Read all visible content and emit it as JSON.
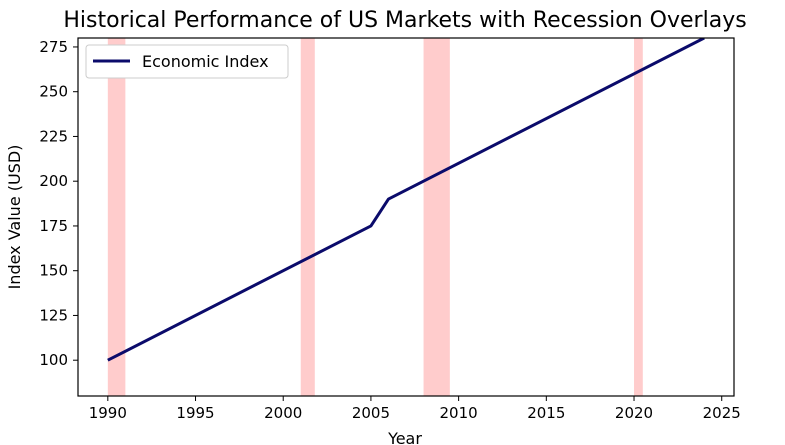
{
  "chart_data": {
    "type": "line",
    "title": "Historical Performance of US Markets with Recession Overlays",
    "xlabel": "Year",
    "ylabel": "Index Value (USD)",
    "xlim": [
      1988.3,
      2025.7
    ],
    "ylim": [
      80,
      280
    ],
    "x_ticks": [
      1990,
      1995,
      2000,
      2005,
      2010,
      2015,
      2020,
      2025
    ],
    "y_ticks": [
      100,
      125,
      150,
      175,
      200,
      225,
      250,
      275
    ],
    "grid": false,
    "legend_position": "upper-left",
    "series": [
      {
        "name": "Economic Index",
        "color": "#0b0b6b",
        "points": [
          [
            1990,
            100
          ],
          [
            2005,
            175
          ],
          [
            2006,
            190
          ],
          [
            2024,
            280
          ]
        ]
      }
    ],
    "recessions": {
      "color": "#ffcccc",
      "periods": [
        [
          1990.0,
          1991.0
        ],
        [
          2001.0,
          2001.8
        ],
        [
          2008.0,
          2009.5
        ],
        [
          2020.0,
          2020.5
        ]
      ]
    }
  }
}
